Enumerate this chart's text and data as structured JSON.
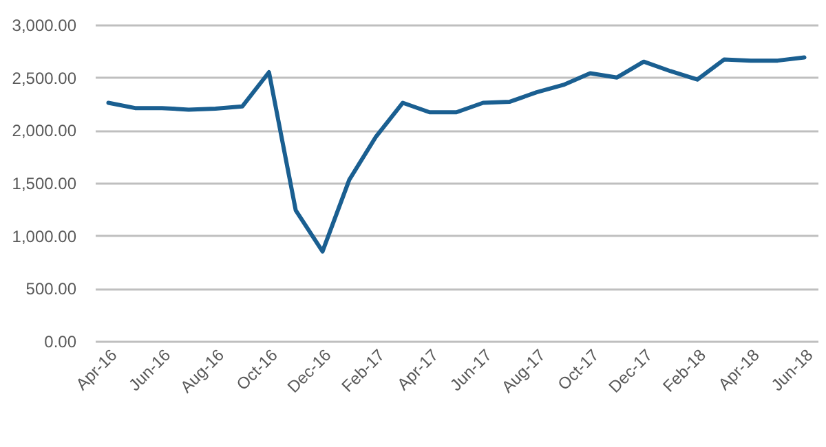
{
  "chart_data": {
    "type": "line",
    "categories": [
      "Apr-16",
      null,
      "Jun-16",
      null,
      "Aug-16",
      null,
      "Oct-16",
      null,
      "Dec-16",
      null,
      "Feb-17",
      null,
      "Apr-17",
      null,
      "Jun-17",
      null,
      "Aug-17",
      null,
      "Oct-17",
      null,
      "Dec-17",
      null,
      "Feb-18",
      null,
      "Apr-18",
      null,
      "Jun-18"
    ],
    "series": [
      {
        "color": "#1a5f91",
        "values": [
          2260,
          2210,
          2210,
          2195,
          2205,
          2225,
          2550,
          1240,
          850,
          1530,
          1940,
          2260,
          2170,
          2170,
          2260,
          2270,
          2360,
          2430,
          2540,
          2500,
          2650,
          2560,
          2480,
          2670,
          2660,
          2660,
          2690
        ]
      }
    ],
    "ylim": [
      0,
      3000
    ],
    "yticks": [
      {
        "value": 0,
        "label": "0.00"
      },
      {
        "value": 500,
        "label": "500.00"
      },
      {
        "value": 1000,
        "label": "1,000.00"
      },
      {
        "value": 1500,
        "label": "1,500.00"
      },
      {
        "value": 2000,
        "label": "2,000.00"
      },
      {
        "value": 2500,
        "label": "2,500.00"
      },
      {
        "value": 3000,
        "label": "3,000.00"
      }
    ],
    "grid": "y",
    "marker": "none",
    "line_style": "solid"
  }
}
